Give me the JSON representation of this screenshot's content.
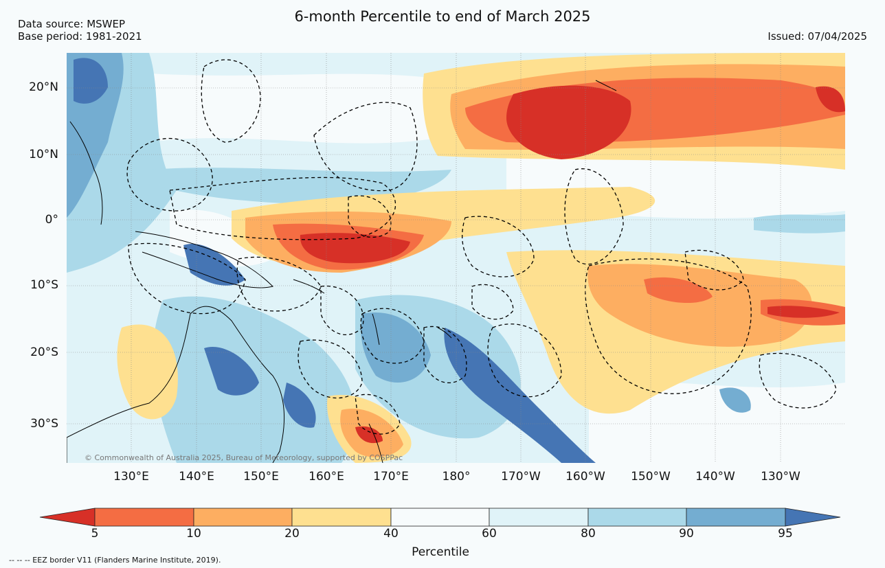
{
  "header": {
    "title": "6-month Percentile to end of March 2025",
    "data_source": "Data source: MSWEP",
    "base_period": "Base period: 1981-2021",
    "issued": "Issued: 07/04/2025"
  },
  "map": {
    "latitude_labels": [
      "20°N",
      "10°N",
      "0°",
      "10°S",
      "20°S",
      "30°S"
    ],
    "longitude_labels": [
      "130°E",
      "140°E",
      "150°E",
      "160°E",
      "170°E",
      "180°",
      "170°W",
      "160°W",
      "150°W",
      "140°W",
      "130°W"
    ],
    "attribution": "© Commonwealth of Australia 2025, Bureau of Meteorology, supported by COSPPac",
    "palette": [
      "#d73027",
      "#f46d43",
      "#fdae61",
      "#fee090",
      "#f7fbfc",
      "#e0f3f8",
      "#abd9e9",
      "#74add1",
      "#4575b4"
    ]
  },
  "colorbar": {
    "title": "Percentile",
    "ticks": [
      "5",
      "10",
      "20",
      "40",
      "60",
      "80",
      "90",
      "95"
    ],
    "colors": [
      "#d73027",
      "#f46d43",
      "#fdae61",
      "#fee090",
      "#f7fbfc",
      "#e0f3f8",
      "#abd9e9",
      "#74add1",
      "#4575b4"
    ]
  },
  "footnote": "--  --  -- EEZ border V11 (Flanders Marine Institute, 2019)."
}
